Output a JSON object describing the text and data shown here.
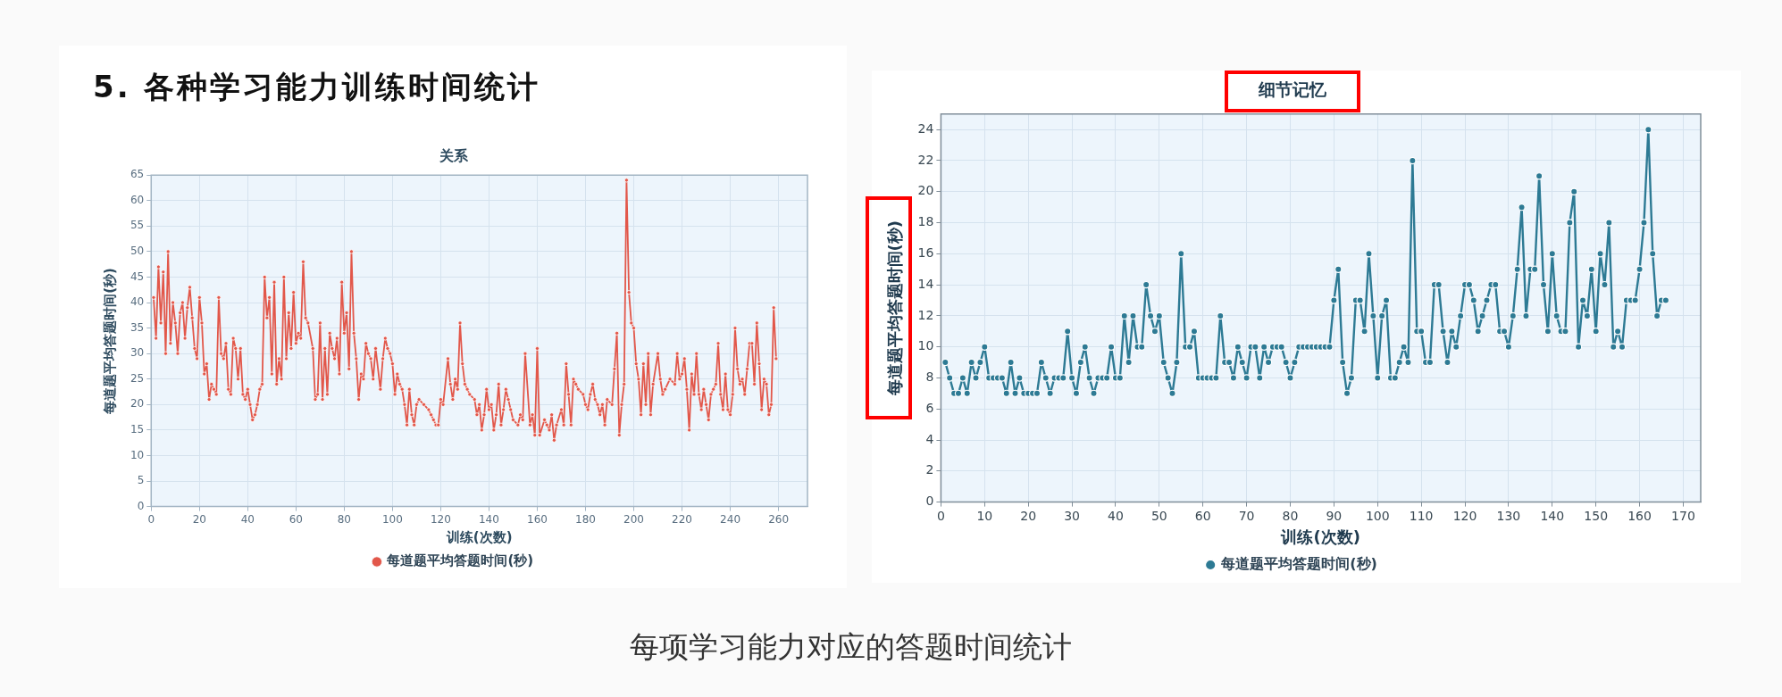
{
  "chart_data": [
    {
      "type": "line",
      "title": "关系",
      "xlabel": "训练(次数)",
      "ylabel": "每道题平均答题时间(秒)",
      "annotations": [
        "5. 各种学习能力训练时间统计",
        "每项学习能力对应的答题时间统计"
      ],
      "x": [
        1,
        2,
        3,
        4,
        5,
        6,
        7,
        8,
        9,
        10,
        11,
        12,
        13,
        14,
        15,
        16,
        17,
        18,
        19,
        20,
        21,
        22,
        23,
        24,
        25,
        26,
        27,
        28,
        29,
        30,
        31,
        32,
        33,
        34,
        35,
        36,
        37,
        38,
        39,
        40,
        41,
        42,
        43,
        44,
        45,
        46,
        47,
        48,
        49,
        50,
        51,
        52,
        53,
        54,
        55,
        56,
        57,
        58,
        59,
        60,
        61,
        62,
        63,
        64,
        65,
        67,
        68,
        69,
        70,
        71,
        72,
        73,
        74,
        75,
        76,
        77,
        78,
        79,
        80,
        81,
        82,
        83,
        84,
        85,
        86,
        87,
        88,
        89,
        90,
        91,
        92,
        93,
        95,
        96,
        97,
        98,
        99,
        100,
        101,
        102,
        103,
        104,
        105,
        106,
        107,
        108,
        109,
        110,
        111,
        113,
        115,
        116,
        117,
        118,
        119,
        120,
        121,
        123,
        124,
        125,
        126,
        127,
        128,
        129,
        130,
        131,
        132,
        134,
        135,
        136,
        137,
        138,
        139,
        140,
        141,
        142,
        143,
        144,
        145,
        146,
        147,
        148,
        149,
        150,
        152,
        153,
        154,
        155,
        157,
        158,
        159,
        160,
        161,
        163,
        164,
        165,
        166,
        167,
        168,
        170,
        171,
        172,
        173,
        174,
        175,
        176,
        177,
        179,
        180,
        181,
        182,
        183,
        184,
        185,
        186,
        187,
        188,
        189,
        191,
        192,
        193,
        194,
        195,
        196,
        197,
        198,
        199,
        200,
        201,
        202,
        203,
        204,
        205,
        206,
        207,
        208,
        210,
        211,
        212,
        213,
        215,
        217,
        218,
        219,
        220,
        221,
        222,
        223,
        224,
        225,
        226,
        227,
        228,
        229,
        230,
        231,
        232,
        233,
        234,
        235,
        236,
        237,
        238,
        239,
        240,
        241,
        242,
        243,
        244,
        245,
        246,
        247,
        248,
        249,
        250,
        251,
        252,
        253,
        254,
        255,
        256,
        257,
        258,
        259
      ],
      "series": [
        {
          "name": "每道题平均答题时间(秒)",
          "color": "#e2574a",
          "values": [
            41,
            33,
            47,
            36,
            46,
            30,
            50,
            32,
            40,
            36,
            30,
            38,
            40,
            33,
            39,
            43,
            37,
            31,
            29,
            41,
            36,
            26,
            28,
            21,
            24,
            23,
            22,
            41,
            30,
            29,
            32,
            23,
            22,
            33,
            31,
            25,
            31,
            22,
            21,
            23,
            20,
            17,
            18,
            20,
            23,
            24,
            45,
            37,
            41,
            26,
            44,
            24,
            29,
            25,
            45,
            29,
            38,
            31,
            42,
            32,
            34,
            33,
            48,
            37,
            36,
            31,
            21,
            22,
            36,
            21,
            31,
            22,
            34,
            31,
            29,
            33,
            26,
            44,
            34,
            38,
            27,
            50,
            34,
            29,
            21,
            26,
            25,
            32,
            30,
            29,
            25,
            31,
            23,
            29,
            33,
            31,
            30,
            28,
            22,
            26,
            24,
            23,
            20,
            16,
            23,
            18,
            16,
            20,
            21,
            20,
            19,
            18,
            17,
            16,
            16,
            21,
            20,
            29,
            24,
            21,
            25,
            23,
            36,
            28,
            24,
            23,
            22,
            21,
            18,
            20,
            15,
            18,
            23,
            19,
            20,
            15,
            18,
            24,
            16,
            19,
            23,
            21,
            19,
            17,
            16,
            18,
            17,
            30,
            16,
            18,
            14,
            31,
            14,
            17,
            16,
            15,
            18,
            13,
            16,
            19,
            16,
            28,
            22,
            16,
            25,
            24,
            23,
            22,
            20,
            19,
            22,
            24,
            21,
            20,
            18,
            20,
            16,
            21,
            20,
            27,
            34,
            14,
            20,
            24,
            64,
            42,
            36,
            35,
            28,
            25,
            18,
            28,
            20,
            30,
            18,
            24,
            30,
            25,
            22,
            23,
            25,
            24,
            30,
            25,
            26,
            29,
            23,
            15,
            26,
            22,
            30,
            22,
            19,
            23,
            20,
            17,
            22,
            23,
            24,
            32,
            22,
            19,
            26,
            19,
            18,
            22,
            35,
            27,
            24,
            25,
            22,
            27,
            32,
            32,
            24,
            36,
            28,
            19,
            25,
            24,
            18,
            20,
            39,
            29
          ]
        }
      ],
      "xlim": [
        0,
        272
      ],
      "xticks": [
        0,
        20,
        40,
        60,
        80,
        100,
        120,
        140,
        160,
        180,
        200,
        220,
        240,
        260
      ],
      "ylim": [
        0,
        65
      ],
      "yticks": [
        0,
        5,
        10,
        15,
        20,
        25,
        30,
        35,
        40,
        45,
        50,
        55,
        60,
        65
      ],
      "grid": true,
      "legend": "bottom",
      "marker": "circle"
    },
    {
      "type": "line",
      "title": "细节记忆",
      "xlabel": "训练(次数)",
      "ylabel": "每道题平均答题时间(秒)",
      "x": [
        1,
        2,
        3,
        4,
        5,
        6,
        7,
        8,
        9,
        10,
        11,
        12,
        13,
        14,
        15,
        16,
        17,
        18,
        19,
        20,
        21,
        22,
        23,
        24,
        25,
        26,
        27,
        28,
        29,
        30,
        31,
        32,
        33,
        34,
        35,
        36,
        37,
        38,
        39,
        40,
        41,
        42,
        43,
        44,
        45,
        46,
        47,
        48,
        49,
        50,
        51,
        52,
        53,
        54,
        55,
        56,
        57,
        58,
        59,
        60,
        61,
        62,
        63,
        64,
        65,
        66,
        67,
        68,
        69,
        70,
        71,
        72,
        73,
        74,
        75,
        76,
        77,
        78,
        79,
        80,
        81,
        82,
        83,
        84,
        85,
        86,
        87,
        88,
        89,
        90,
        91,
        92,
        93,
        94,
        95,
        96,
        97,
        98,
        99,
        100,
        101,
        102,
        103,
        104,
        105,
        106,
        107,
        108,
        109,
        110,
        111,
        112,
        113,
        114,
        115,
        116,
        117,
        118,
        119,
        120,
        121,
        122,
        123,
        124,
        125,
        126,
        127,
        128,
        129,
        130,
        131,
        132,
        133,
        134,
        135,
        136,
        137,
        138,
        139,
        140,
        141,
        142,
        143,
        144,
        145,
        146,
        147,
        148,
        149,
        150,
        151,
        152,
        153,
        154,
        155,
        156,
        157,
        158,
        159,
        160,
        161,
        162,
        163,
        164,
        165,
        166
      ],
      "series": [
        {
          "name": "每道题平均答题时间(秒)",
          "color": "#2d7a94",
          "values": [
            9,
            8,
            7,
            7,
            8,
            7,
            9,
            8,
            9,
            10,
            8,
            8,
            8,
            8,
            7,
            9,
            7,
            8,
            7,
            7,
            7,
            7,
            9,
            8,
            7,
            8,
            8,
            8,
            11,
            8,
            7,
            9,
            10,
            8,
            7,
            8,
            8,
            8,
            10,
            8,
            8,
            12,
            9,
            12,
            10,
            10,
            14,
            12,
            11,
            12,
            9,
            8,
            7,
            9,
            16,
            10,
            10,
            11,
            8,
            8,
            8,
            8,
            8,
            12,
            9,
            9,
            8,
            10,
            9,
            8,
            10,
            10,
            8,
            10,
            9,
            10,
            10,
            10,
            9,
            8,
            9,
            10,
            10,
            10,
            10,
            10,
            10,
            10,
            10,
            13,
            15,
            9,
            7,
            8,
            13,
            13,
            11,
            16,
            12,
            8,
            12,
            13,
            8,
            8,
            9,
            10,
            9,
            22,
            11,
            11,
            9,
            9,
            14,
            14,
            11,
            9,
            11,
            10,
            12,
            14,
            14,
            13,
            11,
            12,
            13,
            14,
            14,
            11,
            11,
            10,
            12,
            15,
            19,
            12,
            15,
            15,
            21,
            14,
            11,
            16,
            12,
            11,
            11,
            18,
            20,
            10,
            13,
            12,
            15,
            11,
            16,
            14,
            18,
            10,
            11,
            10,
            13,
            13,
            13,
            15,
            18,
            24,
            16,
            12,
            13,
            13
          ]
        }
      ],
      "xlim": [
        0,
        174
      ],
      "xticks": [
        0,
        10,
        20,
        30,
        40,
        50,
        60,
        70,
        80,
        90,
        100,
        110,
        120,
        130,
        140,
        150,
        160,
        170
      ],
      "ylim": [
        0,
        25
      ],
      "yticks": [
        0,
        2,
        4,
        6,
        8,
        10,
        12,
        14,
        16,
        18,
        20,
        22,
        24
      ],
      "grid": true,
      "legend": "bottom",
      "marker": "circle"
    }
  ]
}
